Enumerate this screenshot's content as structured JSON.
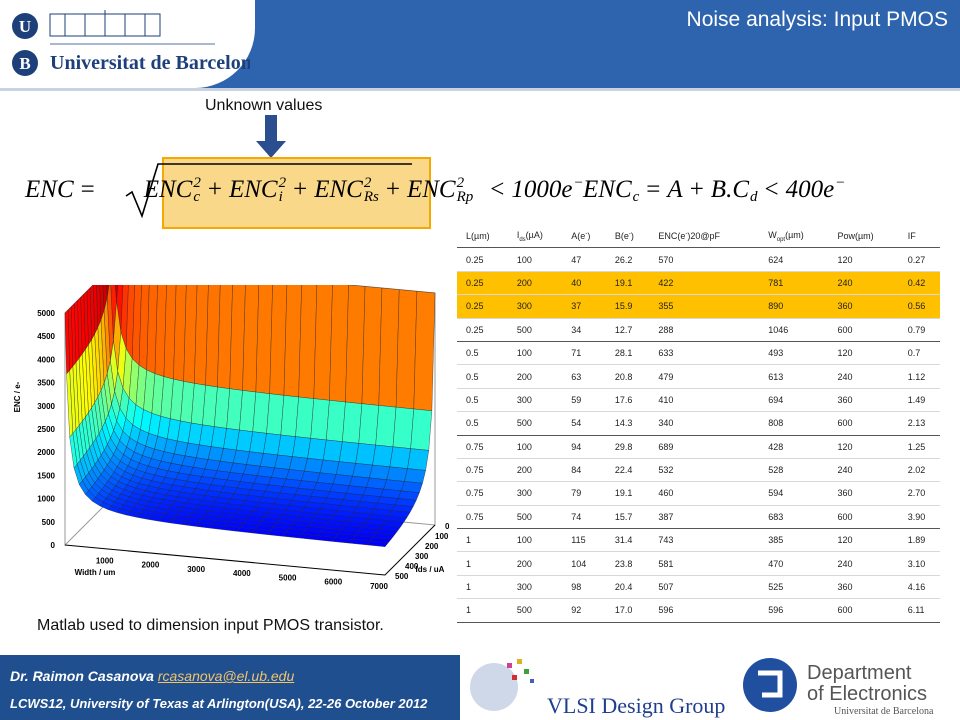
{
  "header": {
    "title": "Noise analysis: Input PMOS",
    "logo_text": "Universitat de Barcelona",
    "logo_letters": [
      "U",
      "B"
    ]
  },
  "annotation": "Unknown values",
  "equation1": {
    "lhs": [
      {
        "t": "ENC"
      }
    ],
    "eq": "=",
    "radicand": [
      {
        "t": "ENC",
        "sup": "2",
        "sub": "c"
      },
      {
        "t": "+"
      },
      {
        "t": "ENC",
        "sup": "2",
        "sub": "i"
      },
      {
        "t": "+"
      },
      {
        "t": "ENC",
        "sup": "2",
        "sub": "Rs"
      },
      {
        "t": "+"
      },
      {
        "t": "ENC",
        "sup": "2",
        "sub": "Rp"
      }
    ],
    "rhs": [
      {
        "t": "<"
      },
      {
        "t": "1000e",
        "sup": "−"
      }
    ]
  },
  "equation2": {
    "parts": [
      {
        "t": "ENC",
        "sub": "c"
      },
      {
        "t": "="
      },
      {
        "t": "A"
      },
      {
        "t": "+"
      },
      {
        "t": "B.C",
        "sub": "d"
      },
      {
        "t": "<"
      },
      {
        "t": "400e",
        "sup": "−"
      }
    ]
  },
  "table": {
    "header": [
      [
        {
          "t": "L(µm)"
        }
      ],
      [
        {
          "t": "I",
          "sub": "ds"
        },
        {
          "t": "(µA)"
        }
      ],
      [
        {
          "t": "A(e",
          "sup": "-"
        },
        {
          "t": ")"
        }
      ],
      [
        {
          "t": "B(e",
          "sup": "-"
        },
        {
          "t": ")"
        }
      ],
      [
        {
          "t": "ENC(e",
          "sup": "-"
        },
        {
          "t": ")20@pF"
        }
      ],
      [
        {
          "t": "W",
          "sub": "opt"
        },
        {
          "t": "(µm)"
        }
      ],
      [
        {
          "t": "Pow(µm)"
        }
      ],
      [
        {
          "t": "IF"
        }
      ]
    ],
    "rows": [
      [
        "0.25",
        "100",
        "47",
        "26.2",
        "570",
        "624",
        "120",
        "0.27"
      ],
      [
        "0.25",
        "200",
        "40",
        "19.1",
        "422",
        "781",
        "240",
        "0.42"
      ],
      [
        "0.25",
        "300",
        "37",
        "15.9",
        "355",
        "890",
        "360",
        "0.56"
      ],
      [
        "0.25",
        "500",
        "34",
        "12.7",
        "288",
        "1046",
        "600",
        "0.79"
      ],
      [
        "0.5",
        "100",
        "71",
        "28.1",
        "633",
        "493",
        "120",
        "0.7"
      ],
      [
        "0.5",
        "200",
        "63",
        "20.8",
        "479",
        "613",
        "240",
        "1.12"
      ],
      [
        "0.5",
        "300",
        "59",
        "17.6",
        "410",
        "694",
        "360",
        "1.49"
      ],
      [
        "0.5",
        "500",
        "54",
        "14.3",
        "340",
        "808",
        "600",
        "2.13"
      ],
      [
        "0.75",
        "100",
        "94",
        "29.8",
        "689",
        "428",
        "120",
        "1.25"
      ],
      [
        "0.75",
        "200",
        "84",
        "22.4",
        "532",
        "528",
        "240",
        "2.02"
      ],
      [
        "0.75",
        "300",
        "79",
        "19.1",
        "460",
        "594",
        "360",
        "2.70"
      ],
      [
        "0.75",
        "500",
        "74",
        "15.7",
        "387",
        "683",
        "600",
        "3.90"
      ],
      [
        "1",
        "100",
        "115",
        "31.4",
        "743",
        "385",
        "120",
        "1.89"
      ],
      [
        "1",
        "200",
        "104",
        "23.8",
        "581",
        "470",
        "240",
        "3.10"
      ],
      [
        "1",
        "300",
        "98",
        "20.4",
        "507",
        "525",
        "360",
        "4.16"
      ],
      [
        "1",
        "500",
        "92",
        "17.0",
        "596",
        "596",
        "600",
        "6.11"
      ]
    ],
    "highlight_rows": [
      1,
      2
    ],
    "group_size": 4
  },
  "surface_plot": {
    "zlabel": "ENC / e-",
    "xlabel": "Width / um",
    "ylabel": "Ids / uA",
    "zticks": [
      5000,
      4500,
      4000,
      3500,
      3000,
      2500,
      2000,
      1500,
      1000,
      500,
      0
    ],
    "xticks": [
      1000,
      2000,
      3000,
      4000,
      5000,
      6000,
      7000
    ],
    "yticks": [
      0,
      100,
      200,
      300,
      400,
      500
    ]
  },
  "caption": "Matlab used to dimension input PMOS transistor.",
  "footer": {
    "author": "Dr. Raimon Casanova",
    "email": "rcasanova@el.ub.edu",
    "event": "LCWS12, University of Texas at Arlington(USA), 22-26 October 2012",
    "group": "VLSI Design Group",
    "dept_line1": "Department",
    "dept_line2": "of Electronics",
    "dept_line3": "Universitat de Barcelona"
  }
}
